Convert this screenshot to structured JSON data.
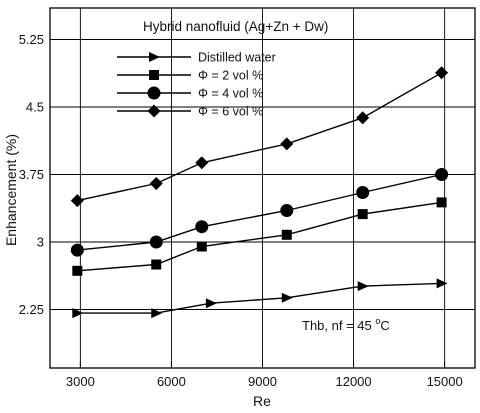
{
  "chart_data": {
    "type": "line",
    "title": "Hybrid nanofluid (Ag+Zn + Dw)",
    "xlabel": "Re",
    "ylabel": "Enhancement (%)",
    "xlim": [
      2000,
      16000
    ],
    "ylim": [
      1.6,
      5.6
    ],
    "xticks": [
      3000,
      6000,
      9000,
      12000,
      15000
    ],
    "yticks": [
      2.25,
      3,
      3.75,
      4.5,
      5.25
    ],
    "xtick_labels": [
      "3000",
      "6000",
      "9000",
      "12000",
      "15000"
    ],
    "ytick_labels": [
      "2.25",
      "3",
      "3.75",
      "4.5",
      "5.25"
    ],
    "grid": true,
    "legend_position": "top-left",
    "annotation": {
      "prefix": "Thb, nf = 45 ",
      "sup": "o",
      "suffix": "C"
    },
    "series": [
      {
        "name": "Distilled water",
        "marker": "triangle-right",
        "x": [
          2900,
          5500,
          7300,
          9800,
          12300,
          14900
        ],
        "y": [
          2.21,
          2.21,
          2.32,
          2.38,
          2.51,
          2.54
        ]
      },
      {
        "name": "Φ = 2 vol %",
        "marker": "square",
        "x": [
          2900,
          5500,
          7000,
          9800,
          12300,
          14900
        ],
        "y": [
          2.68,
          2.75,
          2.95,
          3.08,
          3.31,
          3.44
        ]
      },
      {
        "name": "Φ = 4 vol %",
        "marker": "circle",
        "x": [
          2900,
          5500,
          7000,
          9800,
          12300,
          14900
        ],
        "y": [
          2.91,
          3.0,
          3.17,
          3.35,
          3.55,
          3.75
        ]
      },
      {
        "name": "Φ = 6 vol %",
        "marker": "diamond",
        "x": [
          2900,
          5500,
          7000,
          9800,
          12300,
          14900
        ],
        "y": [
          3.46,
          3.65,
          3.88,
          4.09,
          4.38,
          4.88
        ]
      }
    ]
  }
}
